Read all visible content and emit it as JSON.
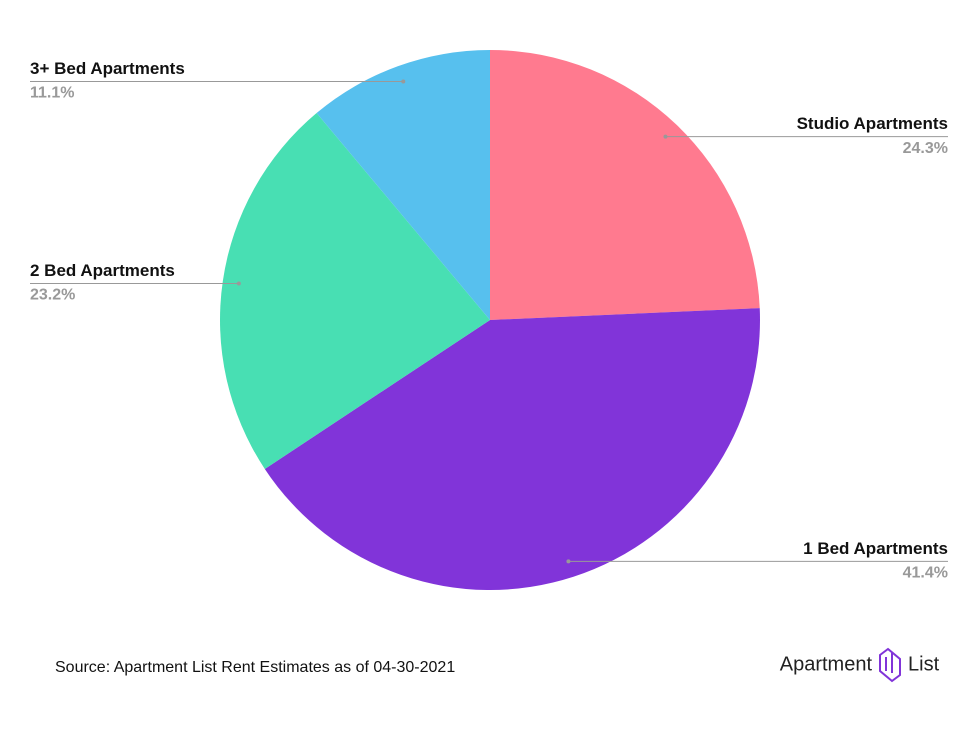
{
  "chart_data": {
    "type": "pie",
    "categories": [
      "Studio Apartments",
      "1 Bed Apartments",
      "2 Bed Apartments",
      "3+ Bed Apartments"
    ],
    "values": [
      24.3,
      41.4,
      23.2,
      11.1
    ],
    "value_labels": [
      "24.3%",
      "41.4%",
      "23.2%",
      "11.1%"
    ],
    "colors": [
      "#ff7a8f",
      "#8134d9",
      "#48dfb3",
      "#57c0ee"
    ]
  },
  "footer": {
    "source": "Source: Apartment List Rent Estimates as of 04-30-2021",
    "logo_left": "Apartment",
    "logo_right": "List"
  }
}
